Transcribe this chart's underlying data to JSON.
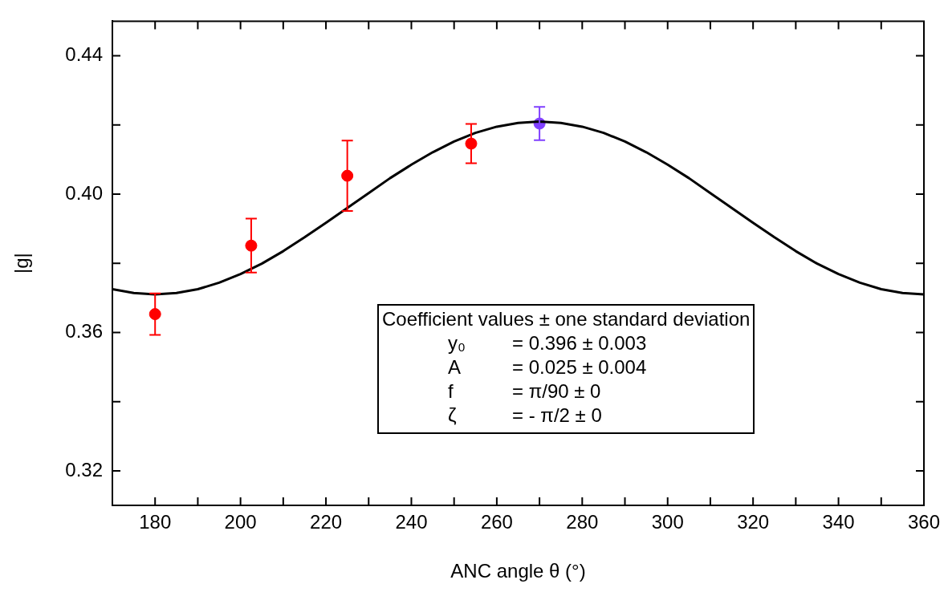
{
  "chart_data": {
    "type": "scatter",
    "xlabel": "ANC angle θ (°)",
    "ylabel": "|g|",
    "xlim": [
      170,
      360
    ],
    "ylim": [
      0.31,
      0.45
    ],
    "xticks": [
      180,
      {
        "value": 190,
        "label": null
      },
      200,
      {
        "value": 210,
        "label": null
      },
      220,
      {
        "value": 230,
        "label": null
      },
      240,
      {
        "value": 250,
        "label": null
      },
      260,
      {
        "value": 270,
        "label": null
      },
      280,
      {
        "value": 290,
        "label": null
      },
      300,
      {
        "value": 310,
        "label": null
      },
      320,
      {
        "value": 330,
        "label": null
      },
      340,
      {
        "value": 350,
        "label": null
      },
      360
    ],
    "yticks": [
      0.32,
      {
        "value": 0.34,
        "label": null
      },
      0.36,
      {
        "value": 0.38,
        "label": null
      },
      {
        "value": 0.4,
        "label": "0.40"
      },
      {
        "value": 0.42,
        "label": null
      },
      0.44
    ],
    "grid": false,
    "annotations": [
      "Coefficient values ± one standard deviation",
      "y₀",
      "= 0.396 ± 0.003",
      "A",
      "= 0.025 ± 0.004",
      "f",
      "= π/90 ± 0",
      "ζ",
      "= - π/2 ± 0"
    ],
    "series": [
      {
        "type": "line",
        "marker": "none",
        "color": "#000000",
        "x": [
          170,
          175,
          180,
          185,
          190,
          195,
          200,
          205,
          210,
          215,
          220,
          225,
          230,
          235,
          240,
          245,
          250,
          255,
          260,
          265,
          270,
          275,
          280,
          285,
          290,
          295,
          300,
          305,
          310,
          315,
          320,
          325,
          330,
          335,
          340,
          345,
          350,
          355,
          360
        ],
        "values": [
          0.3725,
          0.3714,
          0.371,
          0.3714,
          0.3725,
          0.3744,
          0.3769,
          0.3799,
          0.3835,
          0.3875,
          0.3917,
          0.396,
          0.4003,
          0.4046,
          0.4085,
          0.4121,
          0.4152,
          0.4177,
          0.4195,
          0.4206,
          0.421,
          0.4206,
          0.4195,
          0.4177,
          0.4152,
          0.4121,
          0.4085,
          0.4046,
          0.4003,
          0.396,
          0.3917,
          0.3875,
          0.3835,
          0.3799,
          0.3769,
          0.3744,
          0.3725,
          0.3714,
          0.371
        ]
      },
      {
        "marker": "circle",
        "colors": [
          "#ff0000",
          "#ff0000",
          "#ff0000",
          "#ff0000",
          "#8040ff"
        ],
        "x": [
          180,
          202.5,
          225,
          254,
          270
        ],
        "values": [
          0.3653,
          0.3851,
          0.4053,
          0.4146,
          0.4204
        ],
        "errors": [
          0.006,
          0.0078,
          0.0102,
          0.0057,
          0.0048
        ]
      }
    ]
  }
}
